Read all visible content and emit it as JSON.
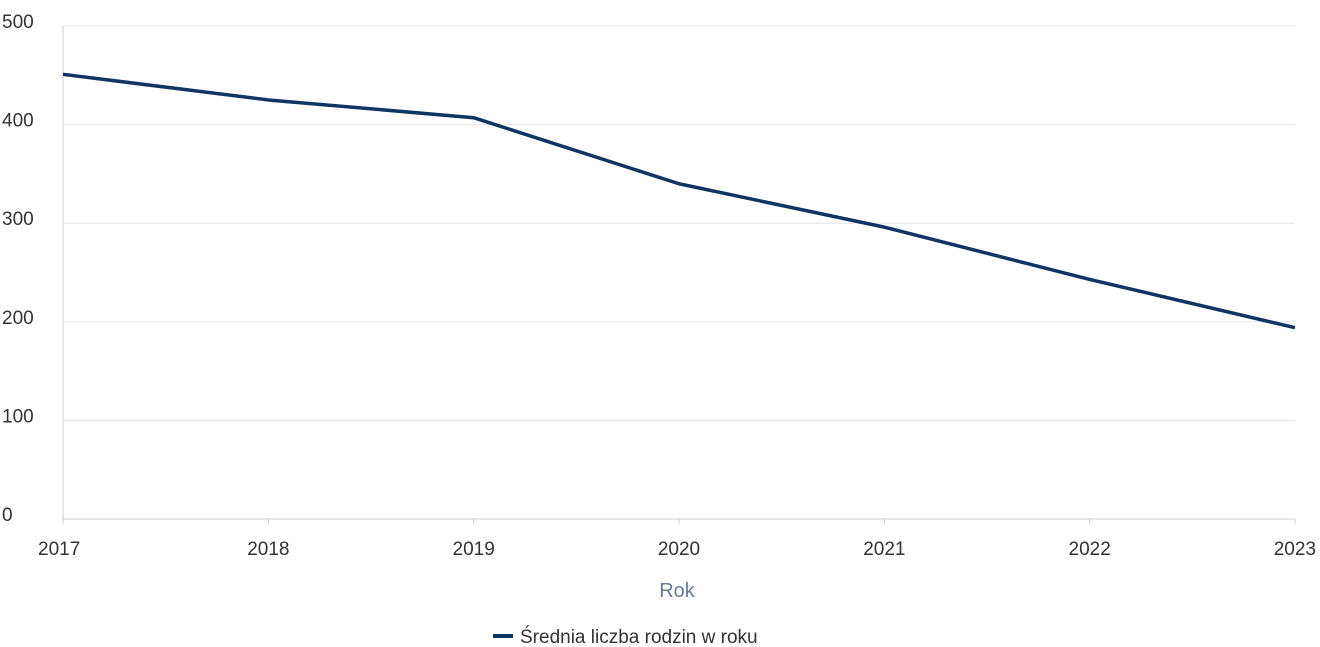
{
  "chart_data": {
    "type": "line",
    "title": "",
    "xlabel": "Rok",
    "ylabel": "",
    "categories": [
      "2017",
      "2018",
      "2019",
      "2020",
      "2021",
      "2022",
      "2023"
    ],
    "series": [
      {
        "name": "Średnia liczba rodzin w roku",
        "values": [
          451,
          425,
          407,
          340,
          296,
          243,
          194
        ],
        "color": "#0f3563"
      }
    ],
    "ylim": [
      0,
      500
    ],
    "yticks": [
      "0",
      "100",
      "200",
      "300",
      "400",
      "500"
    ],
    "grid": true,
    "legend_position": "bottom-center"
  }
}
